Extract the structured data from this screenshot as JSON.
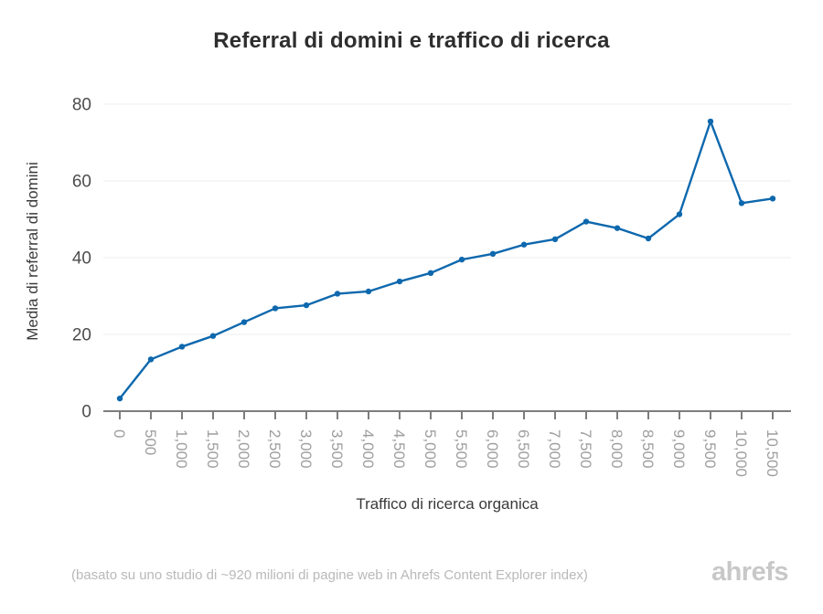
{
  "page": {
    "title": "Referral di domini e traffico di ricerca",
    "footnote": "(basato su uno studio di ~920 milioni di pagine web in Ahrefs Content Explorer index)",
    "brand": "ahrefs"
  },
  "chart_data": {
    "type": "line",
    "title": "Referral di domini e traffico di ricerca",
    "xlabel": "Traffico di ricerca organica",
    "ylabel": "Media di referral di domini",
    "x": [
      0,
      500,
      1000,
      1500,
      2000,
      2500,
      3000,
      3500,
      4000,
      4500,
      5000,
      5500,
      6000,
      6500,
      7000,
      7500,
      8000,
      8500,
      9000,
      9500,
      10000,
      10500
    ],
    "x_tick_labels": [
      "0",
      "500",
      "1,000",
      "1,500",
      "2,000",
      "2,500",
      "3,000",
      "3,500",
      "4,000",
      "4,500",
      "5,000",
      "5,500",
      "6,000",
      "6,500",
      "7,000",
      "7,500",
      "8,000",
      "8,500",
      "9,000",
      "9,500",
      "10,000",
      "10,500"
    ],
    "values": [
      3.3,
      13.5,
      16.8,
      19.6,
      23.2,
      26.8,
      27.6,
      30.6,
      31.2,
      33.8,
      36,
      39.5,
      41,
      43.4,
      44.8,
      49.4,
      47.7,
      45,
      51.3,
      75.5,
      54.2,
      55.4
    ],
    "y_ticks": [
      0,
      20,
      40,
      60,
      80
    ],
    "ylim": [
      0,
      85
    ],
    "grid": "horizontal-only",
    "legend": "none",
    "marker": "dot",
    "colors": {
      "line": "#0e68ad",
      "axis": "#7d7d7d",
      "grid": "#ededed",
      "x_tick_label": "#9e9e9e",
      "y_tick_label": "#4d4d4d"
    }
  }
}
